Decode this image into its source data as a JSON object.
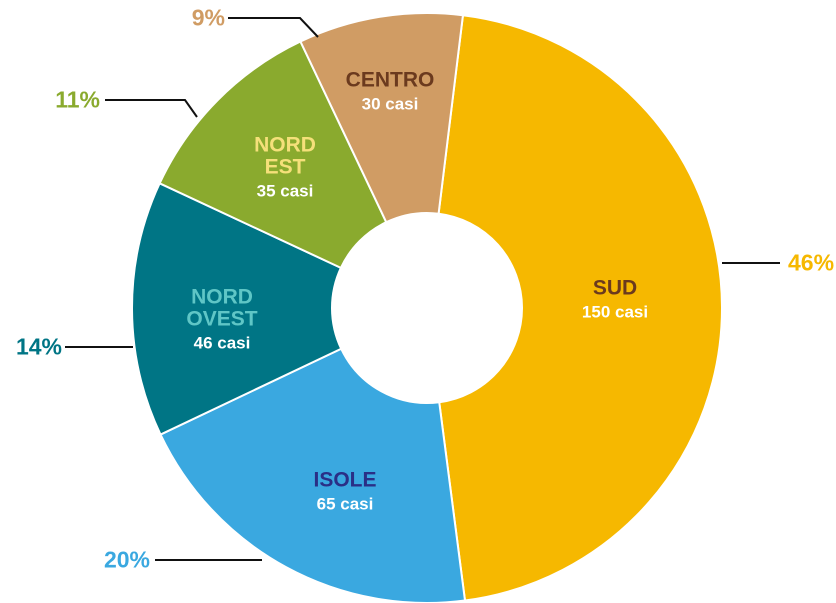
{
  "chart_data": {
    "type": "donut",
    "categories": [
      "SUD",
      "ISOLE",
      "NORD OVEST",
      "NORD EST",
      "CENTRO"
    ],
    "values": [
      46,
      20,
      14,
      11,
      9
    ],
    "value_labels": [
      "46%",
      "20%",
      "14%",
      "11%",
      "9%"
    ],
    "case_labels": [
      "150 casi",
      "65 casi",
      "46 casi",
      "35 casi",
      "30 casi"
    ],
    "colors": [
      "#f6b800",
      "#3aa8e0",
      "#007585",
      "#8aaa2e",
      "#d09c64"
    ],
    "label_colors": [
      "#6b3a1e",
      "#2a2f86",
      "#5fc6c6",
      "#f5e07a",
      "#6b3a1e"
    ]
  }
}
